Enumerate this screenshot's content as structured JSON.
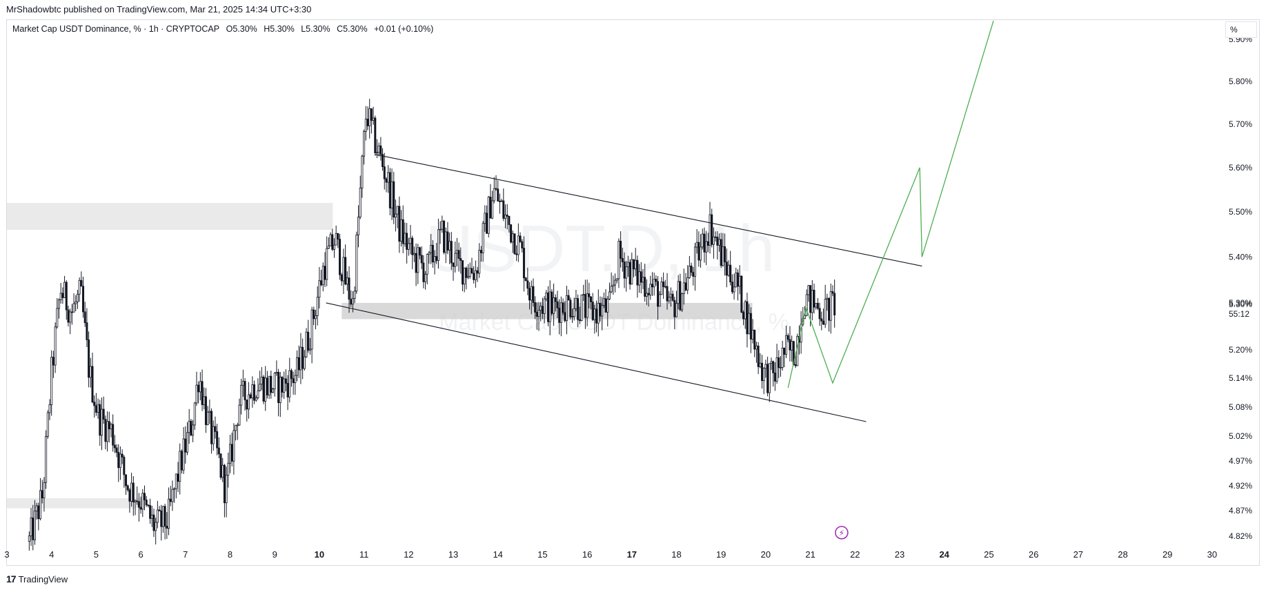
{
  "publisher_line": "MrShadowbtc published on TradingView.com, Mar 21, 2025 14:34 UTC+3:30",
  "legend": {
    "symbol": "Market Cap USDT Dominance, % · 1h · CRYPTOCAP",
    "open": "O5.30%",
    "high": "H5.30%",
    "low": "L5.30%",
    "close": "C5.30%",
    "change": "+0.01 (+0.10%)"
  },
  "scale_button": "%",
  "watermark": {
    "big": "USDT.D, 1h",
    "small": "Market Cap USDT Dominance, %"
  },
  "footer_brand": "TradingView",
  "footer_mark": "17",
  "colors": {
    "candle": "#131722",
    "trend": "#131722",
    "projection": "#4caf50",
    "zone": "#e6e6e6",
    "zone_dark": "#cfcfcf",
    "icon": "#9c27b0"
  },
  "chart_data": {
    "type": "candlestick",
    "y_scale": "log",
    "ylim": [
      4.79,
      5.92
    ],
    "xlim": [
      3,
      30
    ],
    "y_ticks": [
      "5.90%",
      "5.80%",
      "5.70%",
      "5.60%",
      "5.50%",
      "5.40%",
      "5.30%",
      "5.20%",
      "5.14%",
      "5.08%",
      "5.02%",
      "4.97%",
      "4.92%",
      "4.87%",
      "4.82%"
    ],
    "x_ticks": [
      "3",
      "4",
      "5",
      "6",
      "7",
      "8",
      "9",
      "10",
      "11",
      "12",
      "13",
      "14",
      "15",
      "16",
      "17",
      "18",
      "19",
      "20",
      "21",
      "22",
      "23",
      "24",
      "25",
      "26",
      "27",
      "28",
      "29",
      "30"
    ],
    "x_ticks_bold": [
      "10",
      "17",
      "24"
    ],
    "current_price_label": "5.30%",
    "countdown": "55:12",
    "price_path": [
      {
        "x": 3.5,
        "y": 4.81
      },
      {
        "x": 3.8,
        "y": 4.9
      },
      {
        "x": 4.0,
        "y": 5.15
      },
      {
        "x": 4.2,
        "y": 5.33
      },
      {
        "x": 4.45,
        "y": 5.28
      },
      {
        "x": 4.65,
        "y": 5.32
      },
      {
        "x": 4.85,
        "y": 5.15
      },
      {
        "x": 5.05,
        "y": 5.06
      },
      {
        "x": 5.35,
        "y": 5.03
      },
      {
        "x": 5.7,
        "y": 4.92
      },
      {
        "x": 6.0,
        "y": 4.89
      },
      {
        "x": 6.3,
        "y": 4.84
      },
      {
        "x": 6.6,
        "y": 4.85
      },
      {
        "x": 6.85,
        "y": 4.95
      },
      {
        "x": 7.15,
        "y": 5.05
      },
      {
        "x": 7.3,
        "y": 5.15
      },
      {
        "x": 7.5,
        "y": 5.05
      },
      {
        "x": 7.75,
        "y": 4.97
      },
      {
        "x": 7.9,
        "y": 4.91
      },
      {
        "x": 8.2,
        "y": 5.09
      },
      {
        "x": 8.6,
        "y": 5.13
      },
      {
        "x": 9.1,
        "y": 5.12
      },
      {
        "x": 9.5,
        "y": 5.15
      },
      {
        "x": 9.8,
        "y": 5.24
      },
      {
        "x": 10.1,
        "y": 5.38
      },
      {
        "x": 10.35,
        "y": 5.44
      },
      {
        "x": 10.6,
        "y": 5.34
      },
      {
        "x": 10.75,
        "y": 5.3
      },
      {
        "x": 10.9,
        "y": 5.52
      },
      {
        "x": 11.05,
        "y": 5.73
      },
      {
        "x": 11.25,
        "y": 5.66
      },
      {
        "x": 11.5,
        "y": 5.58
      },
      {
        "x": 11.8,
        "y": 5.46
      },
      {
        "x": 12.1,
        "y": 5.4
      },
      {
        "x": 12.4,
        "y": 5.37
      },
      {
        "x": 12.75,
        "y": 5.45
      },
      {
        "x": 13.1,
        "y": 5.38
      },
      {
        "x": 13.5,
        "y": 5.37
      },
      {
        "x": 13.9,
        "y": 5.55
      },
      {
        "x": 14.2,
        "y": 5.48
      },
      {
        "x": 14.5,
        "y": 5.42
      },
      {
        "x": 14.75,
        "y": 5.31
      },
      {
        "x": 15.2,
        "y": 5.29
      },
      {
        "x": 15.7,
        "y": 5.3
      },
      {
        "x": 16.1,
        "y": 5.28
      },
      {
        "x": 16.5,
        "y": 5.29
      },
      {
        "x": 16.7,
        "y": 5.4
      },
      {
        "x": 17.1,
        "y": 5.36
      },
      {
        "x": 17.5,
        "y": 5.33
      },
      {
        "x": 17.9,
        "y": 5.29
      },
      {
        "x": 18.3,
        "y": 5.36
      },
      {
        "x": 18.75,
        "y": 5.47
      },
      {
        "x": 19.1,
        "y": 5.38
      },
      {
        "x": 19.4,
        "y": 5.33
      },
      {
        "x": 19.7,
        "y": 5.23
      },
      {
        "x": 19.95,
        "y": 5.15
      },
      {
        "x": 20.15,
        "y": 5.14
      },
      {
        "x": 20.45,
        "y": 5.2
      },
      {
        "x": 20.65,
        "y": 5.19
      },
      {
        "x": 20.85,
        "y": 5.31
      },
      {
        "x": 21.05,
        "y": 5.3
      },
      {
        "x": 21.3,
        "y": 5.28
      },
      {
        "x": 21.55,
        "y": 5.3
      }
    ],
    "horizontal_zones": [
      {
        "x_start": 3,
        "x_end": 10.3,
        "y_top": 5.52,
        "y_bottom": 5.46,
        "style": "light"
      },
      {
        "x_start": 10.5,
        "x_end": 19.7,
        "y_top": 5.3,
        "y_bottom": 5.265,
        "style": "dark"
      },
      {
        "x_start": 3,
        "x_end": 6.0,
        "y_top": 4.895,
        "y_bottom": 4.875,
        "style": "light"
      }
    ],
    "channel_lines": [
      {
        "x1": 11.25,
        "y1": 5.63,
        "x2": 23.5,
        "y2": 5.38
      },
      {
        "x1": 10.15,
        "y1": 5.3,
        "x2": 22.25,
        "y2": 5.05
      }
    ],
    "projection_path": [
      {
        "x": 20.5,
        "y": 5.12
      },
      {
        "x": 20.9,
        "y": 5.29
      },
      {
        "x": 21.5,
        "y": 5.13
      },
      {
        "x": 23.45,
        "y": 5.6
      },
      {
        "x": 23.5,
        "y": 5.4
      },
      {
        "x": 25.2,
        "y": 5.98
      }
    ],
    "event_icon": {
      "x": 21.7,
      "y": 4.827
    }
  }
}
